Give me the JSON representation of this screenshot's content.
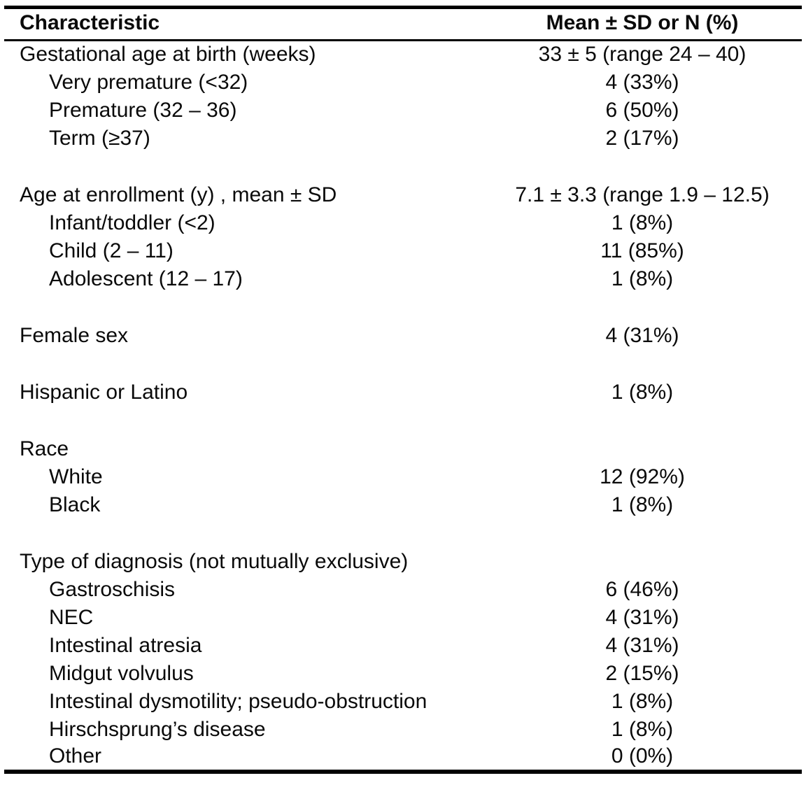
{
  "table": {
    "header": {
      "characteristic": "Characteristic",
      "value": "Mean ± SD or N (%)"
    },
    "sections": [
      {
        "rows": [
          {
            "label": "Gestational age at birth (weeks)",
            "value": "33 ± 5 (range 24 – 40)",
            "indent": false
          },
          {
            "label": "Very premature (<32)",
            "value": "4 (33%)",
            "indent": true
          },
          {
            "label": "Premature (32 – 36)",
            "value": "6 (50%)",
            "indent": true
          },
          {
            "label": "Term (≥37)",
            "value": "2 (17%)",
            "indent": true
          }
        ]
      },
      {
        "rows": [
          {
            "label": "Age at enrollment (y) , mean ± SD",
            "value": "7.1 ± 3.3 (range 1.9 – 12.5)",
            "indent": false
          },
          {
            "label": "Infant/toddler (<2)",
            "value": "1 (8%)",
            "indent": true
          },
          {
            "label": "Child (2 – 11)",
            "value": "11 (85%)",
            "indent": true
          },
          {
            "label": "Adolescent (12 – 17)",
            "value": "1 (8%)",
            "indent": true
          }
        ]
      },
      {
        "rows": [
          {
            "label": "Female sex",
            "value": "4 (31%)",
            "indent": false
          }
        ]
      },
      {
        "rows": [
          {
            "label": "Hispanic or Latino",
            "value": "1 (8%)",
            "indent": false
          }
        ]
      },
      {
        "rows": [
          {
            "label": "Race",
            "value": "",
            "indent": false
          },
          {
            "label": "White",
            "value": "12 (92%)",
            "indent": true
          },
          {
            "label": "Black",
            "value": "1 (8%)",
            "indent": true
          }
        ]
      },
      {
        "rows": [
          {
            "label": "Type of diagnosis (not mutually exclusive)",
            "value": "",
            "indent": false
          },
          {
            "label": "Gastroschisis",
            "value": "6 (46%)",
            "indent": true
          },
          {
            "label": "NEC",
            "value": "4 (31%)",
            "indent": true
          },
          {
            "label": "Intestinal atresia",
            "value": "4 (31%)",
            "indent": true
          },
          {
            "label": "Midgut volvulus",
            "value": "2 (15%)",
            "indent": true
          },
          {
            "label": "Intestinal dysmotility; pseudo-obstruction",
            "value": "1 (8%)",
            "indent": true
          },
          {
            "label": "Hirschsprung’s disease",
            "value": "1 (8%)",
            "indent": true
          },
          {
            "label": "Other",
            "value": "0 (0%)",
            "indent": true
          }
        ]
      }
    ]
  },
  "colors": {
    "text": "#0a0a0a",
    "border": "#000000",
    "background": "#ffffff"
  }
}
